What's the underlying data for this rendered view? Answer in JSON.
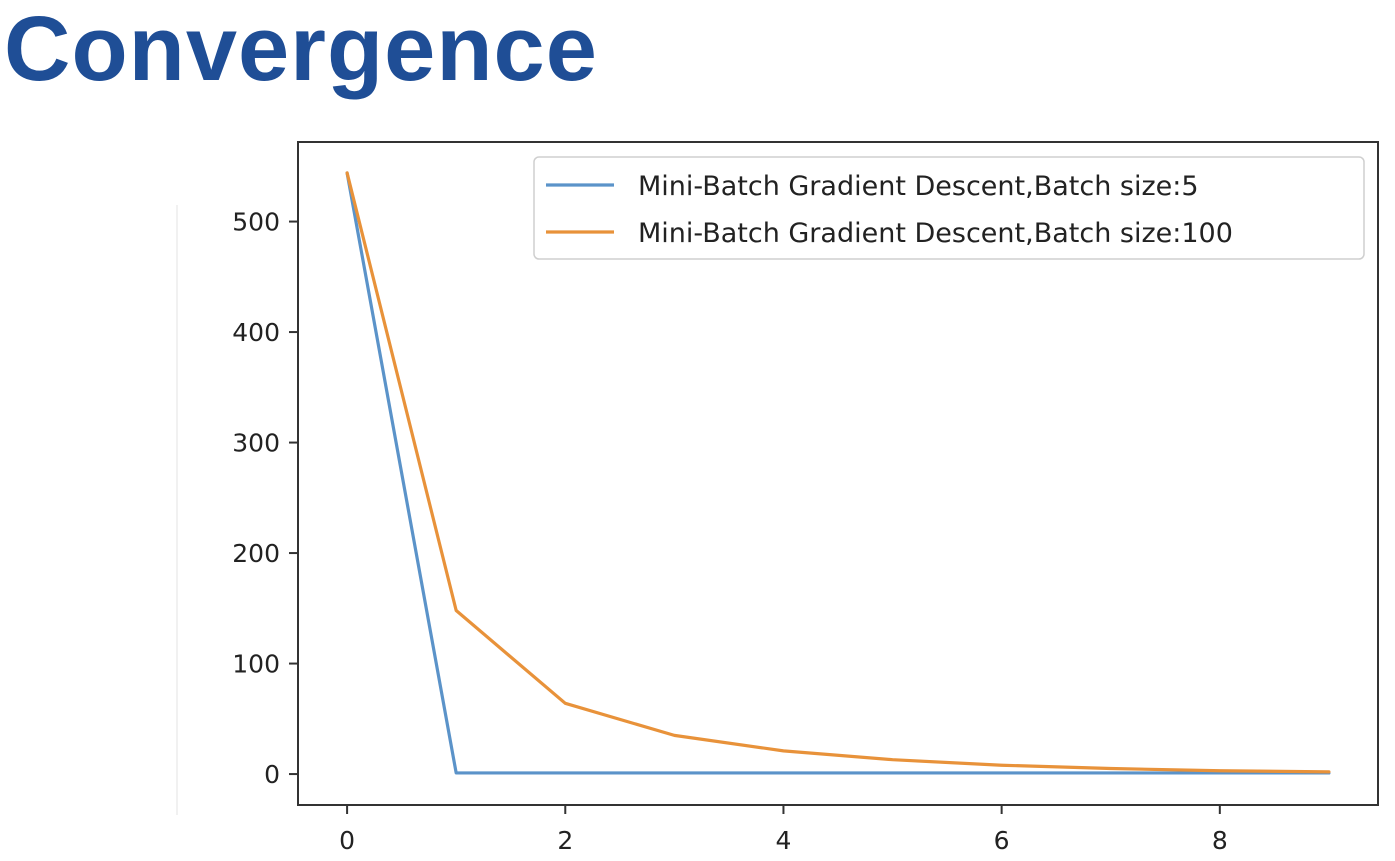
{
  "slide": {
    "title": "Convergence",
    "title_color": "#1f4e96"
  },
  "chart_data": {
    "type": "line",
    "title": "",
    "xlabel": "",
    "ylabel": "",
    "x": [
      0,
      1,
      2,
      3,
      4,
      5,
      6,
      7,
      8,
      9
    ],
    "xlim": [
      -0.45,
      9.45
    ],
    "ylim": [
      -28,
      572
    ],
    "xticks": [
      0,
      2,
      4,
      6,
      8
    ],
    "yticks": [
      0,
      100,
      200,
      300,
      400,
      500
    ],
    "grid": false,
    "legend_position": "top-right",
    "series": [
      {
        "name": "Mini-Batch Gradient Descent,Batch size:5",
        "color": "#5b93c9",
        "values": [
          544,
          1,
          1,
          1,
          1,
          1,
          1,
          1,
          1,
          1
        ]
      },
      {
        "name": "Mini-Batch Gradient Descent,Batch size:100",
        "color": "#e8923a",
        "values": [
          544,
          148,
          64,
          35,
          21,
          13,
          8,
          5,
          3,
          2
        ]
      }
    ]
  }
}
